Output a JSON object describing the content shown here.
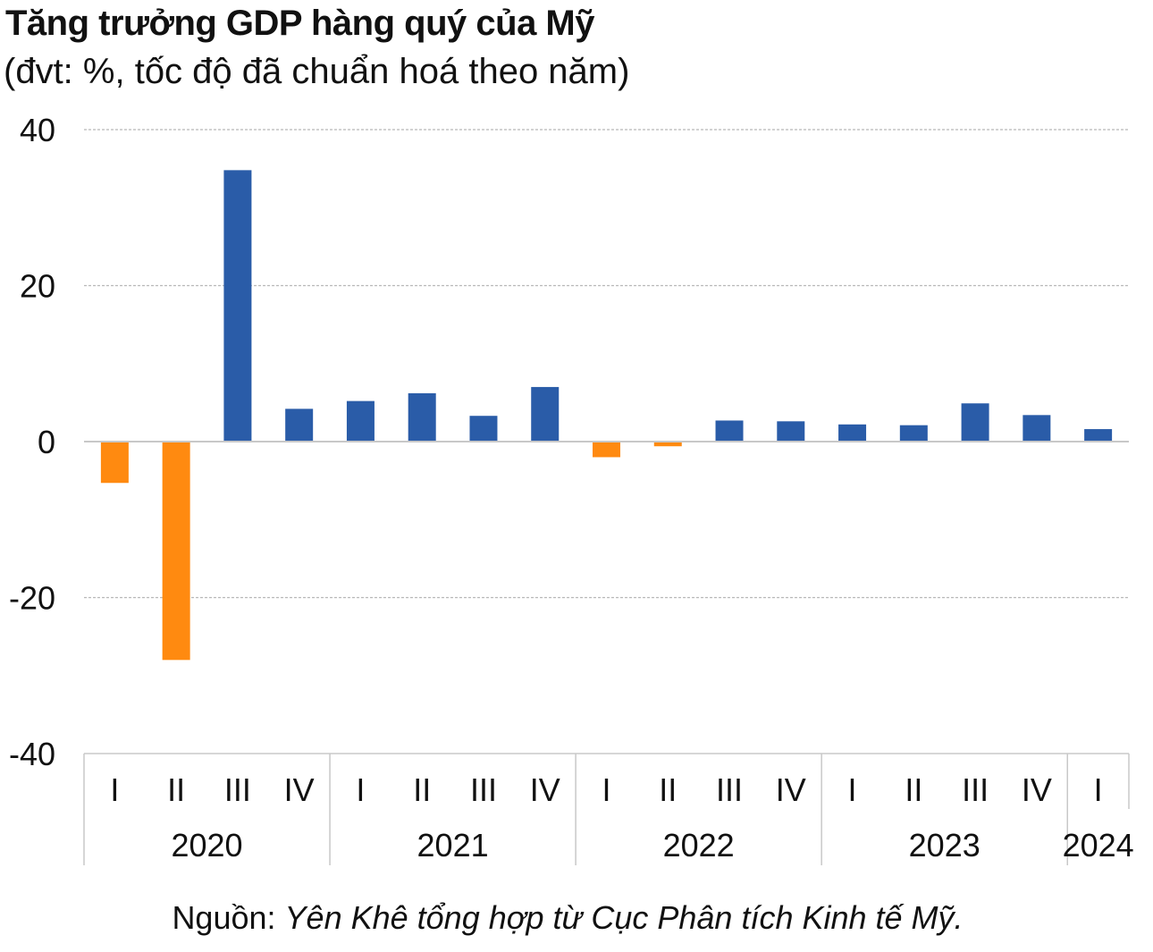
{
  "chart_data": {
    "type": "bar",
    "title": "Tăng trưởng GDP hàng quý của Mỹ",
    "subtitle": "(đvt: %, tốc độ đã chuẩn hoá theo năm)",
    "ylim": [
      -40,
      40
    ],
    "yticks": [
      40,
      20,
      0,
      -20,
      -40
    ],
    "grid": true,
    "categories": [
      "I",
      "II",
      "III",
      "IV",
      "I",
      "II",
      "III",
      "IV",
      "I",
      "II",
      "III",
      "IV",
      "I",
      "II",
      "III",
      "IV",
      "I"
    ],
    "groups": [
      {
        "label": "2020",
        "count": 4
      },
      {
        "label": "2021",
        "count": 4
      },
      {
        "label": "2022",
        "count": 4
      },
      {
        "label": "2023",
        "count": 4
      },
      {
        "label": "2024",
        "count": 1
      }
    ],
    "values": [
      -5.3,
      -28.0,
      34.8,
      4.2,
      5.2,
      6.2,
      3.3,
      7.0,
      -2.0,
      -0.6,
      2.7,
      2.6,
      2.2,
      2.1,
      4.9,
      3.4,
      1.6
    ],
    "colors": {
      "positive": "#2a5ca8",
      "negative": "#ff8a10",
      "grid": "#b8b8b8",
      "axis": "#c8c8c8"
    }
  },
  "source": {
    "prefix": "Nguồn: ",
    "text": "Yên Khê tổng hợp từ Cục Phân tích Kinh tế Mỹ."
  }
}
